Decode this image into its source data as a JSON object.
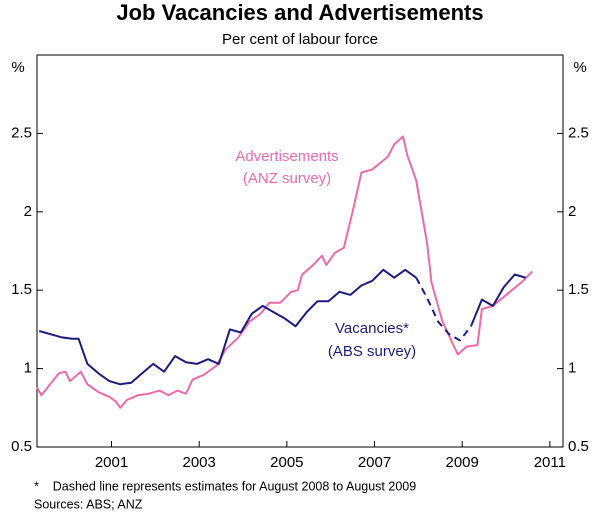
{
  "chart_data": {
    "type": "line",
    "title": "Job Vacancies and Advertisements",
    "subtitle": "Per cent of labour force",
    "y_unit_left": "%",
    "y_unit_right": "%",
    "xlim": [
      1999.8,
      2011.8
    ],
    "xticks": [
      {
        "value": 2001.5,
        "label": "2001"
      },
      {
        "value": 2003.5,
        "label": "2003"
      },
      {
        "value": 2005.5,
        "label": "2005"
      },
      {
        "value": 2007.5,
        "label": "2007"
      },
      {
        "value": 2009.5,
        "label": "2009"
      },
      {
        "value": 2011.5,
        "label": "2011"
      }
    ],
    "ylim": [
      0.5,
      3.0
    ],
    "yticks": [
      0.5,
      1.0,
      1.5,
      2.0,
      2.5
    ],
    "y2lim": [
      0.5,
      3.0
    ],
    "y2ticks": [
      0.5,
      1.0,
      1.5,
      2.0,
      2.5
    ],
    "grid": false,
    "series": [
      {
        "name": "Advertisements",
        "note": "(ANZ survey)",
        "color": "#ec6aa8",
        "x": [
          1999.8,
          1999.9,
          2000.1,
          2000.3,
          2000.45,
          2000.55,
          2000.8,
          2000.95,
          2001.2,
          2001.45,
          2001.6,
          2001.7,
          2001.85,
          2002.1,
          2002.35,
          2002.6,
          2002.8,
          2003.0,
          2003.2,
          2003.35,
          2003.6,
          2003.9,
          2004.1,
          2004.4,
          2004.65,
          2004.9,
          2005.1,
          2005.35,
          2005.6,
          2005.75,
          2005.85,
          2006.1,
          2006.3,
          2006.4,
          2006.6,
          2006.8,
          2007.0,
          2007.2,
          2007.45,
          2007.8,
          2007.95,
          2008.15,
          2008.25,
          2008.45,
          2008.7,
          2008.8,
          2009.05,
          2009.4,
          2009.6,
          2009.85,
          2009.95,
          2010.2,
          2010.55,
          2010.85,
          2011.1
        ],
        "values": [
          0.88,
          0.83,
          0.9,
          0.97,
          0.98,
          0.92,
          0.98,
          0.9,
          0.85,
          0.82,
          0.79,
          0.75,
          0.8,
          0.83,
          0.84,
          0.86,
          0.83,
          0.86,
          0.84,
          0.93,
          0.96,
          1.02,
          1.12,
          1.2,
          1.3,
          1.35,
          1.42,
          1.42,
          1.49,
          1.5,
          1.6,
          1.66,
          1.72,
          1.66,
          1.74,
          1.77,
          2.0,
          2.25,
          2.27,
          2.35,
          2.43,
          2.48,
          2.36,
          2.2,
          1.8,
          1.55,
          1.3,
          1.09,
          1.14,
          1.15,
          1.38,
          1.4,
          1.48,
          1.55,
          1.62
        ]
      },
      {
        "name": "Vacancies*",
        "note": "(ABS survey)",
        "color": "#1c1c7c",
        "dashed_x": [
          2008.45,
          2009.7
        ],
        "x": [
          1999.85,
          2000.1,
          2000.35,
          2000.6,
          2000.75,
          2000.95,
          2001.2,
          2001.45,
          2001.7,
          2001.95,
          2002.2,
          2002.45,
          2002.7,
          2002.95,
          2003.2,
          2003.45,
          2003.7,
          2003.95,
          2004.2,
          2004.45,
          2004.7,
          2004.95,
          2005.2,
          2005.45,
          2005.7,
          2005.95,
          2006.2,
          2006.45,
          2006.7,
          2006.95,
          2007.2,
          2007.45,
          2007.7,
          2007.95,
          2008.2,
          2008.45,
          2008.7,
          2008.95,
          2009.2,
          2009.45,
          2009.7,
          2009.95,
          2010.2,
          2010.45,
          2010.7,
          2010.95
        ],
        "values": [
          1.24,
          1.22,
          1.2,
          1.19,
          1.19,
          1.03,
          0.97,
          0.92,
          0.9,
          0.91,
          0.97,
          1.03,
          0.98,
          1.08,
          1.04,
          1.03,
          1.06,
          1.03,
          1.25,
          1.23,
          1.35,
          1.4,
          1.36,
          1.32,
          1.27,
          1.36,
          1.43,
          1.43,
          1.49,
          1.47,
          1.53,
          1.56,
          1.63,
          1.58,
          1.63,
          1.58,
          1.45,
          1.3,
          1.22,
          1.18,
          1.27,
          1.44,
          1.4,
          1.52,
          1.6,
          1.58
        ]
      }
    ],
    "footnote": "*    Dashed line represents estimates for August 2008 to August 2009",
    "sources": "Sources: ABS; ANZ"
  }
}
